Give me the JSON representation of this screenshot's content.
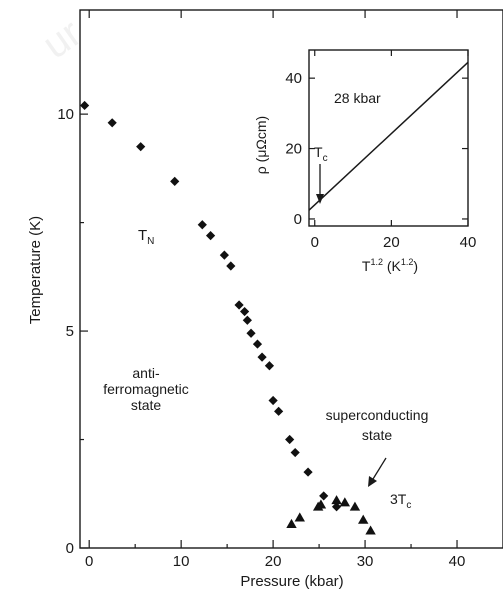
{
  "chart_data": [
    {
      "id": "main",
      "type": "scatter",
      "xlabel": "Pressure (kbar)",
      "ylabel": "Temperature (K)",
      "xlim": [
        -1,
        45
      ],
      "ylim": [
        0,
        12.4
      ],
      "xticks": [
        0,
        10,
        20,
        30,
        40
      ],
      "yticks": [
        0,
        5,
        10
      ],
      "grid": false,
      "series": [
        {
          "name": "T_N",
          "marker": "diamond",
          "x": [
            -0.5,
            2.5,
            5.6,
            9.3,
            12.3,
            13.2,
            14.7,
            15.4,
            16.3,
            16.9,
            17.2,
            17.6,
            18.3,
            18.8,
            19.6,
            20.0,
            20.6,
            21.8,
            22.4,
            23.8,
            25.5,
            26.9
          ],
          "y": [
            10.2,
            9.8,
            9.25,
            8.45,
            7.45,
            7.2,
            6.75,
            6.5,
            5.6,
            5.45,
            5.25,
            4.95,
            4.7,
            4.4,
            4.2,
            3.4,
            3.15,
            2.5,
            2.2,
            1.75,
            1.2,
            0.95
          ]
        },
        {
          "name": "3T_c",
          "marker": "triangle",
          "x": [
            22.0,
            22.9,
            24.9,
            25.2,
            26.9,
            27.8,
            28.9,
            29.8,
            30.6
          ],
          "y": [
            0.55,
            0.7,
            0.95,
            1.0,
            1.1,
            1.05,
            0.95,
            0.65,
            0.4
          ]
        }
      ],
      "annotations": {
        "tn_label": "T",
        "tn_sub": "N",
        "afm_line1": "anti-",
        "afm_line2": "ferromagnetic",
        "afm_line3": "state",
        "sc_line1": "superconducting",
        "sc_line2": "state",
        "tc_label": "3T",
        "tc_sub": "c"
      }
    },
    {
      "id": "inset",
      "type": "line",
      "title": "28 kbar",
      "xlabel_main": "T",
      "xlabel_sup": "1.2",
      "xlabel_unit_open": " (K",
      "xlabel_unit_sup": "1.2",
      "xlabel_unit_close": ")",
      "ylabel": "ρ (μΩcm)",
      "xlim": [
        -1.5,
        40
      ],
      "ylim": [
        -2,
        48
      ],
      "xticks": [
        0,
        20,
        40
      ],
      "yticks": [
        0,
        20,
        40
      ],
      "series": [
        {
          "x": [
            -1.5,
            40
          ],
          "y": [
            2.5,
            44.5
          ]
        }
      ],
      "annotations": {
        "tc_label": "T",
        "tc_sub": "c"
      }
    }
  ]
}
